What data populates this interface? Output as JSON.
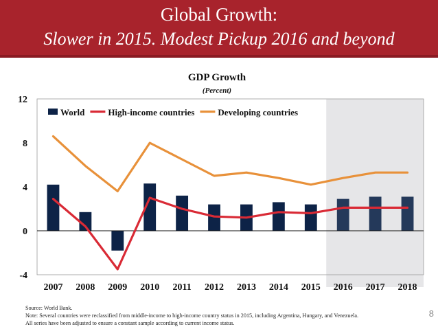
{
  "header": {
    "title": "Global Growth:",
    "subtitle": "Slower in 2015.  Modest Pickup 2016 and beyond",
    "bg_color": "#a8232c"
  },
  "chart_data": {
    "type": "bar+line",
    "title": "GDP Growth",
    "subtitle": "(Percent)",
    "categories": [
      "2007",
      "2008",
      "2009",
      "2010",
      "2011",
      "2012",
      "2013",
      "2014",
      "2015",
      "2016",
      "2017",
      "2018"
    ],
    "ylim": [
      -4,
      12
    ],
    "yticks": [
      "12",
      "8",
      "4",
      "0",
      "-4"
    ],
    "ytick_values": [
      12,
      8,
      4,
      0,
      -4
    ],
    "legend_position": "top-left",
    "forecast_shading_start": "2016",
    "series": [
      {
        "name": "World",
        "kind": "bar",
        "color": "#0d2347",
        "forecast_color": "#24395a",
        "values": [
          4.2,
          1.7,
          -1.8,
          4.3,
          3.2,
          2.4,
          2.4,
          2.6,
          2.4,
          2.9,
          3.1,
          3.1
        ]
      },
      {
        "name": "High-income countries",
        "kind": "line",
        "color": "#d92a35",
        "values": [
          2.9,
          0.4,
          -3.5,
          3.0,
          2.0,
          1.3,
          1.2,
          1.7,
          1.6,
          2.1,
          2.1,
          2.1
        ]
      },
      {
        "name": "Developing countries",
        "kind": "line",
        "color": "#e8913a",
        "values": [
          8.6,
          5.9,
          3.6,
          8.0,
          6.5,
          5.0,
          5.3,
          4.8,
          4.2,
          4.8,
          5.3,
          5.3
        ]
      }
    ]
  },
  "source": {
    "line1": "Source: World Bank.",
    "line2": "Note: Several countries were reclassified from middle-income to high-income country status in 2015, including Argentina, Hungary, and Venezuela.",
    "line3": "All series have been adjusted to ensure a constant sample according to current income status."
  },
  "page_number": "8"
}
